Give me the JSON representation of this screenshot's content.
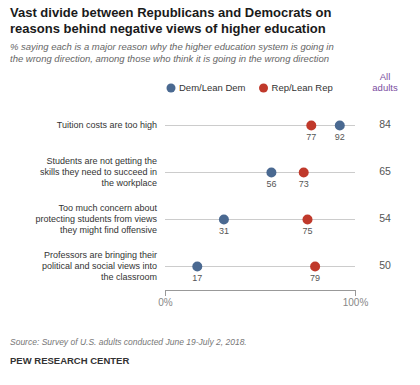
{
  "chart_data": {
    "type": "dot",
    "title": "Vast divide between Republicans and Democrats on\nreasons behind negative views of higher education",
    "subtitle": "% saying each is a major reason why the higher education system is going in\nthe wrong direction, among those who think it is going in the wrong direction",
    "annotations": [
      "Source: Survey of U.S. adults conducted June 19-July 2, 2018.",
      "PEW RESEARCH CENTER"
    ],
    "categories": [
      "Tuition costs are too high",
      "Students are not getting the\nskills they need to succeed in\nthe workplace",
      "Too much concern about\nprotecting students from views\nthey might find offensive",
      "Professors are bringing their\npolitical and social views into\nthe classroom"
    ],
    "series": [
      {
        "name": "Dem/Lean Dem",
        "color": "#4a6991",
        "values": [
          92,
          56,
          31,
          17
        ]
      },
      {
        "name": "Rep/Lean Rep",
        "color": "#c0392b",
        "values": [
          77,
          73,
          75,
          79
        ]
      },
      {
        "name": "All\nadults",
        "color": "#7b4ea0",
        "type": "text",
        "values": [
          84,
          65,
          54,
          50
        ]
      }
    ],
    "xlim": [
      0,
      100
    ],
    "xticks": [
      {
        "value": 0,
        "label": "0%"
      },
      {
        "value": 100,
        "label": "100%"
      }
    ],
    "legend": "top",
    "data_labels": true
  }
}
